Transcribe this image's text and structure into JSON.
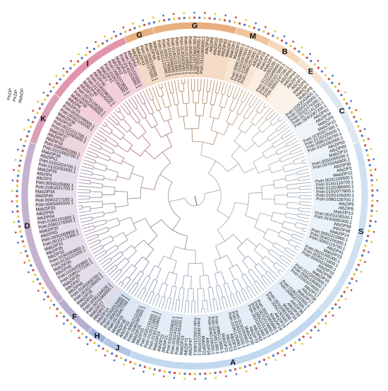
{
  "chart_data": {
    "type": "circular-phylogenetic-tree",
    "title": "",
    "groups": [
      {
        "letter": "G",
        "start": -104,
        "end": -76,
        "color": "#e7b07f"
      },
      {
        "letter": "M",
        "start": -76,
        "end": -64,
        "color": "#f0c49c"
      },
      {
        "letter": "B",
        "start": -64,
        "end": -52,
        "color": "#f7d7b8"
      },
      {
        "letter": "E",
        "start": -52,
        "end": -42,
        "color": "#f6e2cf"
      },
      {
        "letter": "C",
        "start": -42,
        "end": -18,
        "color": "#dde7ef"
      },
      {
        "letter": "S",
        "start": -18,
        "end": 42,
        "color": "#cfe1f0"
      },
      {
        "letter": "A",
        "start": 42,
        "end": 112,
        "color": "#c2d8ee"
      },
      {
        "letter": "J",
        "start": 112,
        "end": 122,
        "color": "#b3c7e5"
      },
      {
        "letter": "H",
        "start": 122,
        "end": 128,
        "color": "#9fb3d8"
      },
      {
        "letter": "F",
        "start": 128,
        "end": 142,
        "color": "#b7aed0"
      },
      {
        "letter": "D",
        "start": 142,
        "end": 198,
        "color": "#c6b1cf"
      },
      {
        "letter": "K",
        "start": 198,
        "end": 216,
        "color": "#d9a0b8"
      },
      {
        "letter": "I",
        "start": 216,
        "end": 246,
        "color": "#e394ad"
      },
      {
        "letter": "G",
        "start": 246,
        "end": 256,
        "color": "#e7b07f"
      }
    ],
    "outlier_labels": [
      "PtrZIP",
      "PtrZIP",
      "MabZIP"
    ],
    "leaves": [
      "Potri.001G131000.1",
      "Potri.003G179900.1",
      "Potri.015G046000.1",
      "Potri.014G131600.1",
      "Potri.002G222900.1",
      "Potri.014G053500.1",
      "Potri.011G108900.1",
      "Potri.004G016300.1",
      "Potri.009G162700.1",
      "Potri.001G402600.1",
      "Potri.011G095600.1",
      "AtbZIP42",
      "AtbZIP9",
      "AtbZIP10",
      "AtbZIP25",
      "AtbZIP63",
      "MabZIP1",
      "MabZIP2",
      "MabZIP3",
      "Potri.008G146800.1",
      "Potri.010G097600.1",
      "Potri.018G056000.1",
      "Potri.006G251000.1",
      "AtbZIP19",
      "AtbZIP23",
      "MabZIP4",
      "MabZIP5",
      "Potri.012G093100.1",
      "Potri.015G089900.1",
      "Potri.002G017800.1",
      "Potri.005G247700.1",
      "AtbZIP43",
      "AtbZIP44",
      "AtbZIP11",
      "AtbZIP1",
      "MabZIP6",
      "MabZIP7",
      "MabZIP8",
      "Potri.016G043400.1",
      "Potri.006G034000.1",
      "Potri.001G374200.1",
      "Potri.017G141300.1",
      "Potri.004G087200.1",
      "AtbZIP61",
      "AtbZIP34",
      "MabZIP9",
      "MabZIP10",
      "Potri.019G027300.1",
      "Potri.013G035000.1",
      "Potri.008G156700.1",
      "Potri.010G082500.1",
      "AtbZIP50",
      "AtbZIP60",
      "MabZIP11",
      "Potri.005G065200.1",
      "Potri.007G056800.1",
      "AtbZIP30",
      "AtbZIP2",
      "MabZIP12",
      "Potri.002G193500.1",
      "Potri.014G116700.1",
      "Potri.012G086600.1",
      "Potri.015G077900.1",
      "Potri.010G106200.1",
      "Potri.008G135700.1",
      "AtbZIP5",
      "AtbZIP8",
      "MabZIP13",
      "Potri.002G158100.1",
      "Potri.014G082400.1",
      "AtbZIP58",
      "AtbZIP48",
      "MabZIP14",
      "Potri.005G223900.1",
      "Potri.004G156300.1",
      "Potri.009G119700.1",
      "AtbZIP41",
      "MabZIP15",
      "Potri.001G305300.1",
      "Potri.003G171600.1",
      "Potri.004G024800.1",
      "AtbZIP16",
      "AtbZIP68",
      "MabZIP16",
      "Potri.011G032600.1",
      "Potri.006G196800.1",
      "Potri.016G074600.1",
      "AtbZIP17",
      "AtbZIP28",
      "MabZIP17",
      "Potri.018G110300.1",
      "Potri.009G077500.1",
      "AtbZIP36",
      "AtbZIP39",
      "MabZIP18",
      "Potri.001G083300.1",
      "Potri.005G192400.1",
      "AtbZIP24",
      "MabZIP19",
      "Potri.002G065800.1",
      "Potri.007G019900.1",
      "Potri.005G231300.1",
      "Potri.002G031900.1",
      "AtbZIP62",
      "AtbZIP70",
      "MabZIP20",
      "Potri.013G059900.1",
      "Potri.019G031000.1",
      "Potri.010G125800.1",
      "AtbZIP12",
      "AtbZIP13",
      "MabZIP21",
      "Potri.008G113600.1",
      "Potri.014G051300.1",
      "Potri.004G158200.1",
      "AtbZIP26",
      "MabZIP22",
      "Potri.006G119700.1",
      "Potri.016G141400.1",
      "AtbZIP47",
      "AtbZIP72",
      "MabZIP23",
      "Potri.009G145100.1",
      "Potri.001G431200.1",
      "Potri.011G155800.1",
      "AtbZIP21",
      "AtbZIP22",
      "MabZIP24",
      "Potri.015G115900.1",
      "Potri.012G123800.1",
      "Potri.003G191600.1",
      "AtbZIP20",
      "MabZIP25",
      "Potri.018G087600.1",
      "Potri.006G211100.1",
      "AtbZIP33",
      "AtbZIP38",
      "MabZIP26",
      "Potri.017G047700.1",
      "Potri.004G076900.1",
      "Potri.010G013400.1",
      "AtbZIP14",
      "AtbZIP27",
      "MabZIP27",
      "Potri.007G066900.1",
      "Potri.005G134500.1",
      "AtbZIP31",
      "MabZIP28",
      "Potri.002G135600.1",
      "Potri.014G068700.1",
      "AtbZIP66",
      "AtbZIP67",
      "MabZIP29",
      "Potri.008G177200.1",
      "Potri.010G050800.1",
      "AtbZIP45",
      "MabZIP30",
      "Potri.013G115200.1",
      "Potri.019G083800.1",
      "AtbZIP32",
      "AtbZIP35",
      "MabZIP31",
      "Potri.001G173300.1",
      "Potri.003G058900.1",
      "AtbZIP55",
      "MabZIP32",
      "Potri.006G178300.1",
      "Potri.018G101600.1",
      "AtbZIP64",
      "AtbZIP65",
      "MabZIP33",
      "Potri.009G045500.1",
      "Potri.004G217100.1",
      "AtbZIP46",
      "MabZIP34",
      "Potri.016G021700.1",
      "Potri.006G025900.1",
      "AtbZIP3",
      "AtbZIP4",
      "MabZIP35",
      "Potri.012G033300.1",
      "Potri.015G024700.1",
      "AtbZIP51",
      "MabZIP36",
      "Potri.011G063700.1",
      "Potri.004G052900.1",
      "AtbZIP18",
      "AtbZIP52",
      "MabZIP37",
      "Potri.017G092900.1",
      "Potri.001G211700.1",
      "AtbZIP29",
      "MabZIP38",
      "Potri.003G102200.1",
      "Potri.002G249300.1",
      "AtbZIP15",
      "AtbZIP6",
      "MabZIP39",
      "Potri.005G063500.1",
      "Potri.007G105300.1",
      "AtbZIP37",
      "MabZIP40",
      "Potri.013G114100.1",
      "Potri.019G086200.1",
      "AtbZIP40",
      "AtbZIP7",
      "MabZIP41",
      "Potri.010G183300.1",
      "Potri.008G073800.1",
      "AtbZIP53",
      "MabZIP42",
      "Potri.014G153000.1",
      "Potri.002G232500.1",
      "AtbZIP54",
      "AtbZIP57",
      "MabZIP43",
      "Potri.009G127500.1",
      "Potri.004G166000.1",
      "AtbZIP56",
      "MabZIP44"
    ],
    "marker_colors": [
      "#4a78c8",
      "#e8c33a",
      "#c8504a"
    ]
  }
}
